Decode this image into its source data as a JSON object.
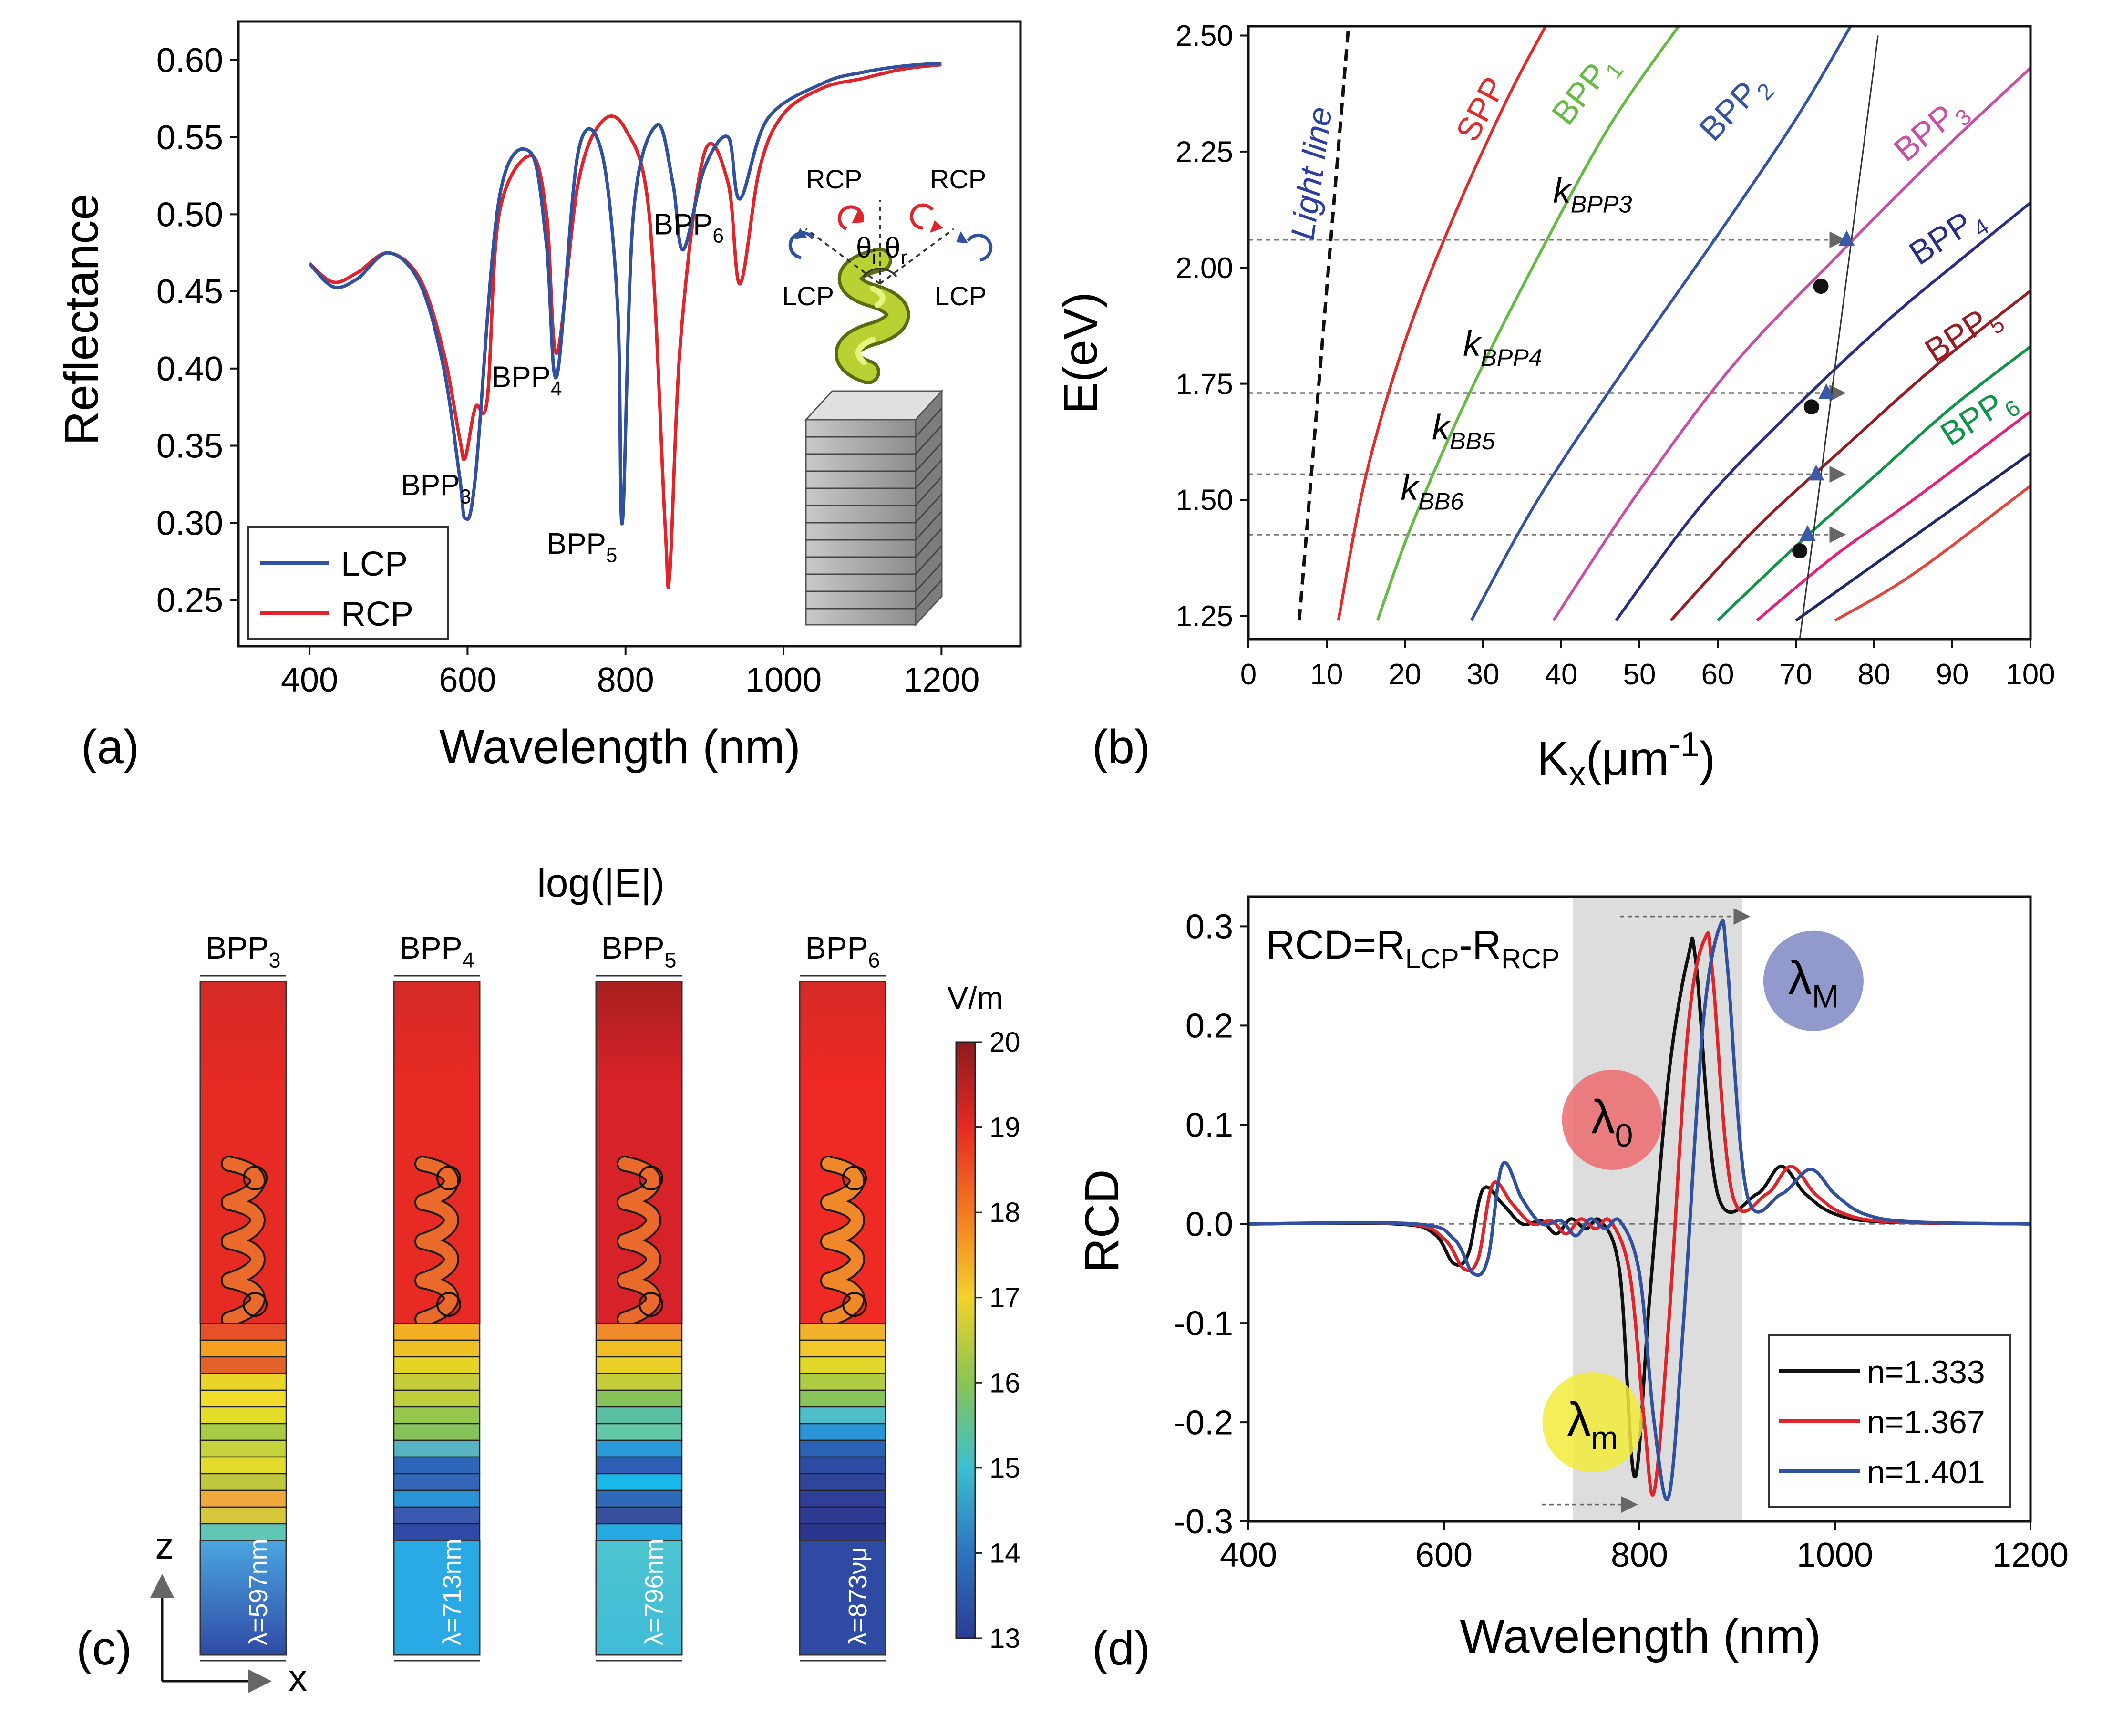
{
  "colors": {
    "lcp": "#3050a0",
    "rcp": "#e0242a",
    "black": "#111111",
    "spp": "#e32b2b",
    "bpp1": "#66bb44",
    "bpp2": "#3453a3",
    "bpp3": "#c751a8",
    "bpp4": "#2a2e86",
    "bpp5": "#9a1d24",
    "bpp6": "#119549",
    "extra1": "#e7227a",
    "extra2": "#1e2a6b",
    "extra3": "#e5463b",
    "lightline": "#111111",
    "shade": "#dddddd",
    "bubble0": "#ec6a6e",
    "bubbleM": "#7e87c4",
    "bubbleMin": "#f2ec3c"
  },
  "chart_data": [
    {
      "panel": "(a)",
      "type": "line",
      "xlabel": "Wavelength (nm)",
      "ylabel": "Reflectance",
      "xlim": [
        310,
        1300
      ],
      "ylim": [
        0.22,
        0.625
      ],
      "xticks": [
        "400",
        "600",
        "800",
        "1000",
        "1200"
      ],
      "yticks": [
        "0.25",
        "0.30",
        "0.35",
        "0.40",
        "0.45",
        "0.50",
        "0.55",
        "0.60"
      ],
      "legend": [
        "LCP",
        "RCP"
      ],
      "series": [
        {
          "name": "LCP",
          "x": [
            400,
            430,
            460,
            500,
            540,
            570,
            590,
            597,
            610,
            640,
            680,
            700,
            713,
            740,
            770,
            790,
            796,
            810,
            840,
            860,
            873,
            900,
            930,
            945,
            980,
            1050,
            1100,
            1150,
            1200
          ],
          "y": [
            0.468,
            0.453,
            0.458,
            0.475,
            0.455,
            0.4,
            0.33,
            0.303,
            0.33,
            0.51,
            0.54,
            0.48,
            0.395,
            0.54,
            0.54,
            0.44,
            0.3,
            0.5,
            0.558,
            0.52,
            0.477,
            0.53,
            0.55,
            0.51,
            0.562,
            0.585,
            0.592,
            0.596,
            0.598
          ]
        },
        {
          "name": "RCP",
          "x": [
            400,
            430,
            460,
            500,
            540,
            570,
            590,
            597,
            610,
            625,
            640,
            680,
            700,
            713,
            740,
            770,
            800,
            830,
            850,
            856,
            870,
            900,
            930,
            945,
            970,
            1000,
            1050,
            1100,
            1150,
            1200
          ],
          "y": [
            0.468,
            0.456,
            0.462,
            0.475,
            0.458,
            0.41,
            0.355,
            0.342,
            0.375,
            0.38,
            0.5,
            0.538,
            0.5,
            0.41,
            0.52,
            0.56,
            0.555,
            0.5,
            0.3,
            0.267,
            0.42,
            0.54,
            0.52,
            0.455,
            0.53,
            0.565,
            0.582,
            0.588,
            0.594,
            0.597
          ]
        }
      ],
      "annotations": [
        {
          "text": "BPP",
          "sub": "3",
          "x": 560,
          "y": 0.318
        },
        {
          "text": "BPP",
          "sub": "4",
          "x": 675,
          "y": 0.388
        },
        {
          "text": "BPP",
          "sub": "5",
          "x": 745,
          "y": 0.28
        },
        {
          "text": "BPP",
          "sub": "6",
          "x": 880,
          "y": 0.487
        }
      ],
      "inset": {
        "rcp_left": "RCP",
        "rcp_right": "RCP",
        "lcp_left": "LCP",
        "lcp_right": "LCP",
        "theta_i": "θ",
        "theta_i_sub": "i",
        "theta_r": "θ",
        "theta_r_sub": "r"
      }
    },
    {
      "panel": "(b)",
      "type": "line",
      "xlabel": "K",
      "xlabel_sub": "x",
      "xlabel_unit": "(μm",
      "xlabel_sup": "-1",
      "xlabel_close": ")",
      "ylabel": "E(eV)",
      "xlim": [
        0,
        100
      ],
      "ylim": [
        1.2,
        2.52
      ],
      "xticks": [
        "0",
        "10",
        "20",
        "30",
        "40",
        "50",
        "60",
        "70",
        "80",
        "90",
        "100"
      ],
      "yticks": [
        "1.25",
        "1.50",
        "1.75",
        "2.00",
        "2.25",
        "2.50"
      ],
      "series": [
        {
          "name": "Light line",
          "x": [
            6.5,
            12.8
          ],
          "y": [
            1.24,
            2.52
          ]
        },
        {
          "name": "SPP",
          "x": [
            11.5,
            15,
            20,
            26,
            33,
            38
          ],
          "y": [
            1.24,
            1.55,
            1.84,
            2.1,
            2.36,
            2.52
          ]
        },
        {
          "name": "BPP1",
          "x": [
            16.5,
            21,
            28,
            36,
            46,
            55
          ],
          "y": [
            1.24,
            1.45,
            1.72,
            1.99,
            2.3,
            2.52
          ]
        },
        {
          "name": "BPP2",
          "x": [
            28.5,
            37,
            48,
            60,
            70,
            77
          ],
          "y": [
            1.24,
            1.5,
            1.78,
            2.07,
            2.32,
            2.52
          ]
        },
        {
          "name": "BPP3",
          "x": [
            39,
            50,
            62,
            75,
            88,
            100
          ],
          "y": [
            1.24,
            1.52,
            1.79,
            2.02,
            2.24,
            2.43
          ]
        },
        {
          "name": "BPP4",
          "x": [
            47,
            58,
            70,
            82,
            92,
            100
          ],
          "y": [
            1.24,
            1.49,
            1.7,
            1.89,
            2.03,
            2.14
          ]
        },
        {
          "name": "BPP5",
          "x": [
            54,
            65,
            76,
            88,
            100
          ],
          "y": [
            1.24,
            1.44,
            1.61,
            1.79,
            1.95
          ]
        },
        {
          "name": "BPP6",
          "x": [
            60,
            70,
            80,
            90,
            100
          ],
          "y": [
            1.24,
            1.4,
            1.55,
            1.7,
            1.83
          ]
        },
        {
          "name": "extra1",
          "x": [
            65,
            75,
            85,
            100
          ],
          "y": [
            1.24,
            1.38,
            1.5,
            1.69
          ]
        },
        {
          "name": "extra2",
          "x": [
            70,
            80,
            90,
            100
          ],
          "y": [
            1.24,
            1.36,
            1.48,
            1.6
          ]
        },
        {
          "name": "extra3",
          "x": [
            75,
            85,
            100
          ],
          "y": [
            1.24,
            1.34,
            1.53
          ]
        }
      ],
      "curve_labels": [
        {
          "text": "Light line",
          "x": 9.5,
          "y": 2.2,
          "color": "#2a3f9f"
        },
        {
          "text": "SPP",
          "sub": "",
          "x": 31,
          "y": 2.33,
          "color": "#e32b2b"
        },
        {
          "text": "BPP",
          "sub": "1",
          "x": 44,
          "y": 2.37,
          "color": "#66bb44"
        },
        {
          "text": "BPP",
          "sub": "2",
          "x": 63,
          "y": 2.33,
          "color": "#3453a3"
        },
        {
          "text": "BPP",
          "sub": "3",
          "x": 88,
          "y": 2.28,
          "color": "#c751a8"
        },
        {
          "text": "BPP",
          "sub": "4",
          "x": 90,
          "y": 2.05,
          "color": "#2a2e86"
        },
        {
          "text": "BPP",
          "sub": "5",
          "x": 92,
          "y": 1.84,
          "color": "#9a1d24"
        },
        {
          "text": "BPP",
          "sub": "6",
          "x": 94,
          "y": 1.66,
          "color": "#119549"
        }
      ],
      "k_labels": [
        {
          "text": "k",
          "sub": "BPP3",
          "x": 44,
          "y": 2.14
        },
        {
          "text": "k",
          "sub": "BPP4",
          "x": 32.5,
          "y": 1.81
        },
        {
          "text": "k",
          "sub": "BB5",
          "x": 27.5,
          "y": 1.63
        },
        {
          "text": "k",
          "sub": "BB6",
          "x": 23.5,
          "y": 1.5
        }
      ],
      "guide_energies": [
        2.06,
        1.73,
        1.555,
        1.425
      ],
      "steep_line": {
        "x": [
          70.5,
          80.5
        ],
        "y": [
          1.2,
          2.5
        ]
      },
      "triangles": [
        {
          "x": 76.5,
          "y": 2.06
        },
        {
          "x": 73.9,
          "y": 1.73
        },
        {
          "x": 72.6,
          "y": 1.555
        },
        {
          "x": 71.5,
          "y": 1.425
        }
      ],
      "dots": [
        {
          "x": 73.2,
          "y": 1.96
        },
        {
          "x": 72.0,
          "y": 1.7
        },
        {
          "x": 70.5,
          "y": 1.39
        }
      ]
    },
    {
      "panel": "(d)",
      "type": "line",
      "xlabel": "Wavelength (nm)",
      "ylabel": "RCD",
      "xlim": [
        400,
        1200
      ],
      "ylim": [
        -0.3,
        0.33
      ],
      "xticks": [
        "400",
        "600",
        "800",
        "1000",
        "1200"
      ],
      "yticks": [
        "-0.3",
        "-0.2",
        "-0.1",
        "0.0",
        "0.1",
        "0.2",
        "0.3"
      ],
      "shade": [
        732,
        905
      ],
      "formula": {
        "main": "RCD=R",
        "sub1": "LCP",
        "mid": "-R",
        "sub2": "RCP"
      },
      "legend": [
        "n=1.333",
        "n=1.367",
        "n=1.401"
      ],
      "series": [
        {
          "name": "n=1.333",
          "x": [
            400,
            550,
            590,
            610,
            625,
            640,
            660,
            680,
            700,
            715,
            730,
            745,
            760,
            780,
            795,
            810,
            830,
            850,
            858,
            880,
            920,
            945,
            970,
            1000,
            1050,
            1200
          ],
          "y": [
            0,
            0,
            -0.01,
            -0.04,
            -0.03,
            0.035,
            0.02,
            0.0,
            0.003,
            -0.01,
            0.005,
            -0.005,
            0.003,
            -0.05,
            -0.255,
            -0.08,
            0.15,
            0.27,
            0.262,
            0.03,
            0.03,
            0.058,
            0.03,
            0.01,
            0.002,
            0
          ]
        },
        {
          "name": "n=1.367",
          "x": [
            400,
            560,
            600,
            620,
            635,
            650,
            670,
            690,
            710,
            725,
            740,
            755,
            770,
            790,
            805,
            815,
            830,
            850,
            868,
            875,
            895,
            930,
            955,
            980,
            1010,
            1060,
            1200
          ],
          "y": [
            0,
            0,
            -0.015,
            -0.045,
            -0.035,
            0.04,
            0.02,
            0.0,
            0.003,
            -0.01,
            0.005,
            -0.005,
            0.003,
            -0.05,
            -0.2,
            -0.27,
            -0.1,
            0.2,
            0.29,
            0.25,
            0.03,
            0.03,
            0.058,
            0.03,
            0.01,
            0.002,
            0
          ]
        },
        {
          "name": "n=1.401",
          "x": [
            400,
            570,
            610,
            630,
            645,
            660,
            680,
            700,
            720,
            735,
            750,
            765,
            780,
            800,
            815,
            830,
            845,
            865,
            883,
            890,
            910,
            945,
            975,
            1000,
            1030,
            1080,
            1200
          ],
          "y": [
            0,
            0,
            -0.015,
            -0.05,
            -0.035,
            0.06,
            0.025,
            0.0,
            0.003,
            -0.012,
            0.005,
            -0.005,
            0.003,
            -0.05,
            -0.2,
            -0.275,
            -0.1,
            0.2,
            0.302,
            0.26,
            0.03,
            0.03,
            0.055,
            0.03,
            0.01,
            0.002,
            0
          ]
        }
      ],
      "bubbles": [
        {
          "label": "λ",
          "sub": "0",
          "x": 772,
          "y": 0.105
        },
        {
          "label": "λ",
          "sub": "M",
          "x": 978,
          "y": 0.245
        },
        {
          "label": "λ",
          "sub": "m",
          "x": 752,
          "y": -0.2
        }
      ],
      "arrows": [
        {
          "x1": 780,
          "x2": 910,
          "y": 0.31
        },
        {
          "x1": 700,
          "x2": 795,
          "y": -0.283
        }
      ]
    }
  ],
  "panel_c": {
    "title": "log(|E|)",
    "columns": [
      {
        "label": "BPP",
        "sub": "3",
        "lambda": "λ=597nm",
        "bands": [
          "#e8502a",
          "#f5a020",
          "#e2622a",
          "#e9d42a",
          "#f2dd2a",
          "#e3dc28",
          "#a8cc46",
          "#c6d43c",
          "#e4dc2c",
          "#c0c840",
          "#f0a83a",
          "#d8c63a",
          "#62c6b4"
        ],
        "bottom_top": "#4ba6e0",
        "bottom_bot": "#2f4aa6",
        "tint": "#e62a24"
      },
      {
        "label": "BPP",
        "sub": "4",
        "lambda": "λ=713nm",
        "bands": [
          "#f2b022",
          "#eec024",
          "#e5d426",
          "#c6cc3a",
          "#bfcf3c",
          "#96c84e",
          "#86c35a",
          "#56b5c0",
          "#2e66b8",
          "#3266b6",
          "#2a92d6",
          "#3a58ae",
          "#2f4aa6"
        ],
        "bottom_top": "#2aaae4",
        "bottom_bot": "#2aaae4",
        "tint": "#e82a24"
      },
      {
        "label": "BPP",
        "sub": "5",
        "lambda": "λ=796nm",
        "bands": [
          "#f08a2a",
          "#f0be22",
          "#e8d026",
          "#c6cd3a",
          "#86c45a",
          "#5ac0a4",
          "#62c8a8",
          "#2a9ad8",
          "#2e5fb6",
          "#1ab8e8",
          "#2f6ab8",
          "#36509e",
          "#26a9e0"
        ],
        "bottom_top": "#4ec4d0",
        "bottom_bot": "#40bcd8",
        "tint": "#d8222a"
      },
      {
        "label": "BPP",
        "sub": "6",
        "lambda": "λ=873νμ",
        "bands": [
          "#f2b22a",
          "#f2c82a",
          "#e2d82a",
          "#b0cc44",
          "#88c45a",
          "#4ebec8",
          "#2a96d8",
          "#2a62b4",
          "#2e4ca4",
          "#31449c",
          "#2f3f98",
          "#2d3b92",
          "#2b378e"
        ],
        "bottom_top": "#2e4aa2",
        "bottom_bot": "#2e4aa2",
        "tint": "#ef2924"
      }
    ],
    "colorbar": {
      "unit": "V/m",
      "ticks": [
        "20",
        "19",
        "18",
        "17",
        "16",
        "15",
        "14",
        "13"
      ],
      "stops": [
        "#8e1a1e",
        "#e42a23",
        "#f47a20",
        "#f2d22a",
        "#8ac454",
        "#3bbfd0",
        "#2c74be",
        "#2a3d94"
      ]
    },
    "axes": {
      "z": "z",
      "x": "x"
    }
  },
  "panel_labels": [
    "(a)",
    "(b)",
    "(c)",
    "(d)"
  ]
}
